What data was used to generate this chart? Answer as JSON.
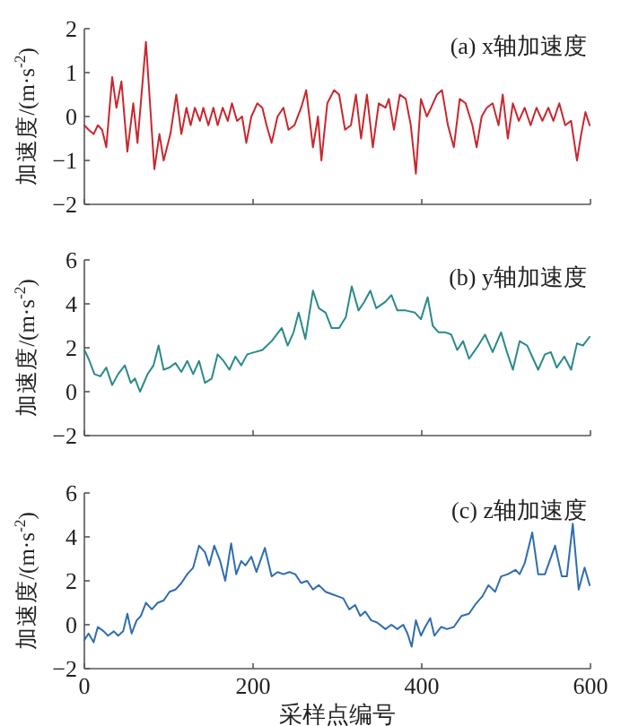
{
  "chart_data": [
    {
      "type": "line",
      "title": "(a) x轴加速度",
      "ylabel": "加速度/(m·s$^{-2}$)",
      "color": "#c8282e",
      "xlim": [
        0,
        600
      ],
      "xticks": [
        {
          "value": 0,
          "label": null
        },
        {
          "value": 200,
          "label": null
        },
        {
          "value": 400,
          "label": null
        },
        {
          "value": 600,
          "label": null
        }
      ],
      "ylim": [
        -2,
        2
      ],
      "yticks": [
        -2,
        -1,
        0,
        1,
        2
      ],
      "tick_labels": "y",
      "x": [
        0,
        5,
        11,
        16,
        21,
        26,
        33,
        38,
        44,
        51,
        58,
        63,
        73,
        83,
        89,
        94,
        102,
        109,
        115,
        121,
        126,
        131,
        137,
        141,
        147,
        153,
        158,
        164,
        170,
        175,
        181,
        187,
        192,
        198,
        205,
        211,
        216,
        222,
        229,
        236,
        242,
        249,
        257,
        263,
        271,
        277,
        281,
        288,
        296,
        302,
        309,
        316,
        322,
        328,
        335,
        342,
        349,
        357,
        361,
        367,
        374,
        381,
        387,
        393,
        399,
        406,
        411,
        418,
        424,
        431,
        438,
        445,
        452,
        460,
        465,
        471,
        477,
        484,
        491,
        496,
        502,
        508,
        515,
        522,
        529,
        536,
        543,
        550,
        556,
        563,
        570,
        577,
        584,
        589,
        594,
        599
      ],
      "values": [
        -0.2,
        -0.3,
        -0.4,
        -0.2,
        -0.3,
        -0.7,
        0.9,
        0.2,
        0.8,
        -0.8,
        0.3,
        -0.6,
        1.7,
        -1.2,
        -0.4,
        -1.0,
        -0.4,
        0.5,
        -0.4,
        0.2,
        -0.2,
        0.2,
        -0.1,
        0.2,
        -0.2,
        0.2,
        -0.2,
        0.2,
        -0.1,
        0.3,
        -0.1,
        0.0,
        -0.6,
        0.0,
        0.3,
        0.2,
        -0.2,
        -0.6,
        0.0,
        0.2,
        -0.3,
        -0.2,
        0.2,
        0.6,
        -0.7,
        0.0,
        -1.0,
        0.3,
        0.6,
        0.5,
        -0.3,
        -0.2,
        0.5,
        -0.5,
        0.5,
        -0.7,
        0.3,
        0.2,
        0.4,
        -0.3,
        0.5,
        0.4,
        -0.2,
        -1.3,
        0.4,
        0.0,
        0.2,
        0.5,
        0.6,
        -0.2,
        -0.7,
        0.4,
        0.3,
        -0.2,
        -0.7,
        0.0,
        0.2,
        0.3,
        -0.2,
        0.5,
        -0.5,
        0.3,
        -0.1,
        0.2,
        -0.2,
        0.2,
        -0.1,
        0.2,
        -0.1,
        0.3,
        -0.2,
        -0.1,
        -1.0,
        -0.4,
        0.1,
        -0.2
      ]
    },
    {
      "type": "line",
      "title": "(b) y轴加速度",
      "ylabel": "加速度/(m·s$^{-2}$)",
      "color": "#2a8a8a",
      "xlim": [
        0,
        600
      ],
      "xticks": [
        {
          "value": 0,
          "label": null
        },
        {
          "value": 200,
          "label": null
        },
        {
          "value": 400,
          "label": null
        },
        {
          "value": 600,
          "label": null
        }
      ],
      "ylim": [
        -2,
        6
      ],
      "yticks": [
        -2,
        0,
        2,
        4,
        6
      ],
      "tick_labels": "y",
      "x": [
        0,
        5,
        12,
        19,
        26,
        33,
        40,
        48,
        55,
        60,
        66,
        75,
        82,
        88,
        94,
        101,
        108,
        115,
        122,
        129,
        136,
        143,
        151,
        158,
        165,
        172,
        179,
        186,
        193,
        202,
        211,
        222,
        234,
        241,
        248,
        254,
        262,
        271,
        278,
        286,
        293,
        302,
        310,
        317,
        325,
        332,
        339,
        346,
        357,
        364,
        371,
        381,
        392,
        399,
        407,
        413,
        420,
        428,
        435,
        442,
        449,
        456,
        467,
        475,
        484,
        494,
        501,
        508,
        516,
        525,
        532,
        538,
        546,
        553,
        560,
        569,
        577,
        584,
        591,
        599
      ],
      "values": [
        1.9,
        1.5,
        0.8,
        0.7,
        1.1,
        0.3,
        0.8,
        1.2,
        0.4,
        0.6,
        0.0,
        0.8,
        1.2,
        2.1,
        1.0,
        1.1,
        1.3,
        0.9,
        1.4,
        0.8,
        1.4,
        0.4,
        0.6,
        1.7,
        1.4,
        1.0,
        1.6,
        1.2,
        1.7,
        1.8,
        1.9,
        2.3,
        2.9,
        2.1,
        2.7,
        3.6,
        2.4,
        4.6,
        3.8,
        3.6,
        2.9,
        2.9,
        3.4,
        4.8,
        3.7,
        4.1,
        4.6,
        3.8,
        4.1,
        4.4,
        3.7,
        3.7,
        3.6,
        3.3,
        4.3,
        3.0,
        2.7,
        2.7,
        2.6,
        1.9,
        2.3,
        1.5,
        2.1,
        2.6,
        1.8,
        2.7,
        1.8,
        1.0,
        2.3,
        2.1,
        1.5,
        1.0,
        1.7,
        1.8,
        1.1,
        1.6,
        1.0,
        2.2,
        2.1,
        2.5
      ]
    },
    {
      "type": "line",
      "title": "(c) z轴加速度",
      "xlabel": "采样点编号",
      "ylabel": "加速度/(m·s$^{-2}$)",
      "color": "#2f6db0",
      "xlim": [
        0,
        600
      ],
      "xticks": [
        0,
        200,
        400,
        600
      ],
      "ylim": [
        -2,
        6
      ],
      "yticks": [
        -2,
        0,
        2,
        4,
        6
      ],
      "x": [
        0,
        5,
        11,
        16,
        23,
        28,
        35,
        40,
        46,
        51,
        56,
        62,
        67,
        73,
        80,
        87,
        94,
        101,
        108,
        115,
        122,
        129,
        136,
        143,
        148,
        154,
        161,
        167,
        174,
        180,
        186,
        191,
        198,
        204,
        214,
        222,
        229,
        236,
        243,
        250,
        257,
        264,
        271,
        278,
        286,
        293,
        300,
        307,
        314,
        321,
        327,
        333,
        340,
        347,
        357,
        364,
        371,
        378,
        383,
        388,
        393,
        399,
        404,
        410,
        415,
        423,
        430,
        438,
        447,
        456,
        463,
        472,
        479,
        487,
        494,
        502,
        511,
        516,
        522,
        531,
        538,
        546,
        558,
        566,
        572,
        579,
        586,
        593,
        599
      ],
      "values": [
        -0.7,
        -0.4,
        -0.8,
        -0.1,
        -0.3,
        -0.5,
        -0.3,
        -0.5,
        -0.3,
        0.5,
        -0.4,
        0.2,
        0.4,
        1.0,
        0.7,
        1.0,
        1.1,
        1.5,
        1.6,
        1.9,
        2.3,
        2.6,
        3.6,
        3.3,
        2.7,
        3.6,
        2.9,
        2.0,
        3.7,
        2.3,
        2.9,
        2.7,
        3.1,
        2.4,
        3.5,
        2.2,
        2.4,
        2.3,
        2.4,
        2.3,
        1.9,
        2.0,
        1.6,
        1.8,
        1.5,
        1.4,
        1.3,
        1.2,
        0.7,
        0.9,
        0.4,
        0.6,
        0.2,
        0.1,
        -0.2,
        0.0,
        -0.2,
        0.0,
        -0.4,
        -1.0,
        0.2,
        -0.5,
        -0.1,
        0.3,
        -0.5,
        -0.1,
        -0.2,
        -0.1,
        0.4,
        0.5,
        0.9,
        1.3,
        1.8,
        1.5,
        2.2,
        2.3,
        2.5,
        2.3,
        2.8,
        4.2,
        2.3,
        2.3,
        3.6,
        2.2,
        2.2,
        4.6,
        1.6,
        2.6,
        1.8
      ]
    }
  ]
}
